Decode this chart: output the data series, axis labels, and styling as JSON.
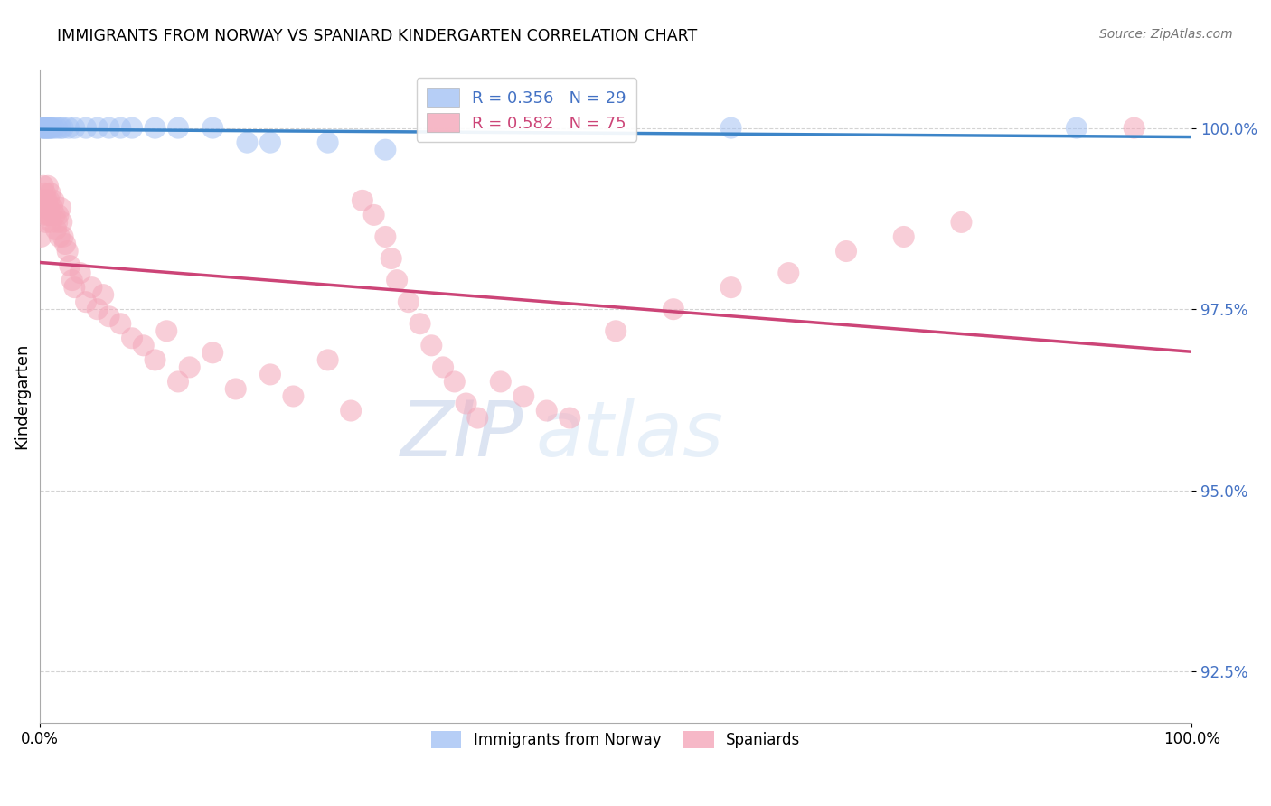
{
  "title": "IMMIGRANTS FROM NORWAY VS SPANIARD KINDERGARTEN CORRELATION CHART",
  "source": "Source: ZipAtlas.com",
  "ylabel": "Kindergarten",
  "xlim": [
    0.0,
    100.0
  ],
  "ylim": [
    91.8,
    100.8
  ],
  "yticks": [
    92.5,
    95.0,
    97.5,
    100.0
  ],
  "xticks": [
    0.0,
    100.0
  ],
  "norway_R": 0.356,
  "norway_N": 29,
  "spaniard_R": 0.582,
  "spaniard_N": 75,
  "norway_color": "#a4c2f4",
  "spaniard_color": "#f4a7b9",
  "norway_line_color": "#3d85c8",
  "spaniard_line_color": "#cc4477",
  "watermark_zip": "ZIP",
  "watermark_atlas": "atlas",
  "norway_x": [
    0.2,
    0.3,
    0.4,
    0.5,
    0.6,
    0.7,
    0.8,
    0.9,
    1.0,
    1.2,
    1.5,
    1.8,
    2.0,
    2.5,
    3.0,
    4.0,
    5.0,
    6.0,
    7.0,
    8.0,
    10.0,
    12.0,
    15.0,
    18.0,
    20.0,
    25.0,
    30.0,
    60.0,
    90.0
  ],
  "norway_y": [
    100.0,
    100.0,
    100.0,
    100.0,
    100.0,
    100.0,
    100.0,
    100.0,
    100.0,
    100.0,
    100.0,
    100.0,
    100.0,
    100.0,
    100.0,
    100.0,
    100.0,
    100.0,
    100.0,
    100.0,
    100.0,
    100.0,
    100.0,
    99.8,
    99.8,
    99.8,
    99.7,
    100.0,
    100.0
  ],
  "spaniard_x": [
    0.1,
    0.2,
    0.25,
    0.3,
    0.35,
    0.4,
    0.45,
    0.5,
    0.55,
    0.6,
    0.65,
    0.7,
    0.75,
    0.8,
    0.85,
    0.9,
    1.0,
    1.1,
    1.2,
    1.3,
    1.4,
    1.5,
    1.6,
    1.7,
    1.8,
    1.9,
    2.0,
    2.2,
    2.4,
    2.6,
    2.8,
    3.0,
    3.5,
    4.0,
    4.5,
    5.0,
    5.5,
    6.0,
    7.0,
    8.0,
    9.0,
    10.0,
    11.0,
    12.0,
    13.0,
    15.0,
    17.0,
    20.0,
    22.0,
    25.0,
    27.0,
    28.0,
    29.0,
    30.0,
    30.5,
    31.0,
    32.0,
    33.0,
    34.0,
    35.0,
    36.0,
    37.0,
    38.0,
    40.0,
    42.0,
    44.0,
    46.0,
    50.0,
    55.0,
    60.0,
    65.0,
    70.0,
    75.0,
    80.0,
    95.0
  ],
  "spaniard_y": [
    98.5,
    99.0,
    98.8,
    99.2,
    99.0,
    98.9,
    99.1,
    99.0,
    98.7,
    99.0,
    98.8,
    99.2,
    98.9,
    99.0,
    98.8,
    99.1,
    98.7,
    98.9,
    99.0,
    98.8,
    98.6,
    98.7,
    98.8,
    98.5,
    98.9,
    98.7,
    98.5,
    98.4,
    98.3,
    98.1,
    97.9,
    97.8,
    98.0,
    97.6,
    97.8,
    97.5,
    97.7,
    97.4,
    97.3,
    97.1,
    97.0,
    96.8,
    97.2,
    96.5,
    96.7,
    96.9,
    96.4,
    96.6,
    96.3,
    96.8,
    96.1,
    99.0,
    98.8,
    98.5,
    98.2,
    97.9,
    97.6,
    97.3,
    97.0,
    96.7,
    96.5,
    96.2,
    96.0,
    96.5,
    96.3,
    96.1,
    96.0,
    97.2,
    97.5,
    97.8,
    98.0,
    98.3,
    98.5,
    98.7,
    100.0
  ]
}
